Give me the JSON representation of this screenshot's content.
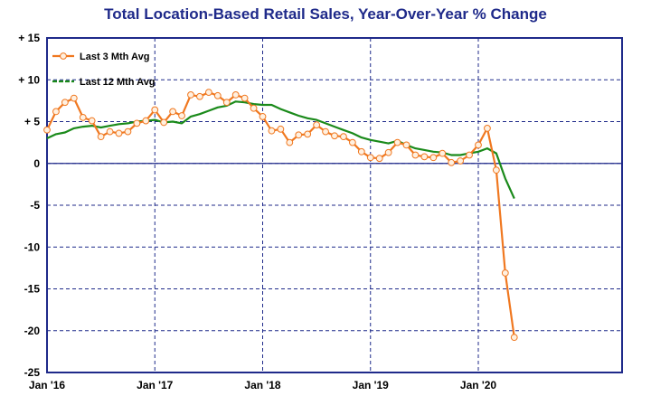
{
  "chart_data": {
    "type": "line",
    "title": "Total Location-Based Retail Sales, Year-Over-Year % Change",
    "xlabel": "",
    "ylabel": "",
    "ylim": [
      -25,
      15
    ],
    "yticks": [
      {
        "value": 15,
        "label": "+ 15"
      },
      {
        "value": 10,
        "label": "+ 10"
      },
      {
        "value": 5,
        "label": "+ 5"
      },
      {
        "value": 0,
        "label": "0"
      },
      {
        "value": -5,
        "label": "-5"
      },
      {
        "value": -10,
        "label": "-10"
      },
      {
        "value": -15,
        "label": "-15"
      },
      {
        "value": -20,
        "label": "-20"
      },
      {
        "value": -25,
        "label": "-25"
      }
    ],
    "xticks": [
      {
        "value": "2016-01",
        "label": "Jan '16"
      },
      {
        "value": "2017-01",
        "label": "Jan '17"
      },
      {
        "value": "2018-01",
        "label": "Jan '18"
      },
      {
        "value": "2019-01",
        "label": "Jan '19"
      },
      {
        "value": "2020-01",
        "label": "Jan '20"
      }
    ],
    "xlim": [
      "2016-01",
      "2021-05"
    ],
    "grid": true,
    "legend_position": "top-left",
    "series": [
      {
        "name": "Last 3 Mth Avg",
        "color": "#f07820",
        "marker": "circle",
        "x": [
          "2016-01",
          "2016-02",
          "2016-03",
          "2016-04",
          "2016-05",
          "2016-06",
          "2016-07",
          "2016-08",
          "2016-09",
          "2016-10",
          "2016-11",
          "2016-12",
          "2017-01",
          "2017-02",
          "2017-03",
          "2017-04",
          "2017-05",
          "2017-06",
          "2017-07",
          "2017-08",
          "2017-09",
          "2017-10",
          "2017-11",
          "2017-12",
          "2018-01",
          "2018-02",
          "2018-03",
          "2018-04",
          "2018-05",
          "2018-06",
          "2018-07",
          "2018-08",
          "2018-09",
          "2018-10",
          "2018-11",
          "2018-12",
          "2019-01",
          "2019-02",
          "2019-03",
          "2019-04",
          "2019-05",
          "2019-06",
          "2019-07",
          "2019-08",
          "2019-09",
          "2019-10",
          "2019-11",
          "2019-12",
          "2020-01",
          "2020-02",
          "2020-03",
          "2020-04",
          "2020-05"
        ],
        "values": [
          4.0,
          6.2,
          7.3,
          7.8,
          5.5,
          5.1,
          3.2,
          3.8,
          3.6,
          3.8,
          4.8,
          5.1,
          6.4,
          4.9,
          6.2,
          5.7,
          8.2,
          8.0,
          8.5,
          8.1,
          7.3,
          8.2,
          7.8,
          6.6,
          5.6,
          3.9,
          4.1,
          2.5,
          3.4,
          3.5,
          4.6,
          3.8,
          3.3,
          3.2,
          2.5,
          1.4,
          0.7,
          0.6,
          1.3,
          2.5,
          2.2,
          1.0,
          0.8,
          0.7,
          1.2,
          0.1,
          0.3,
          1.0,
          2.2,
          4.2,
          -0.8,
          -13.1,
          -20.8
        ]
      },
      {
        "name": "Last 12 Mth Avg",
        "color": "#1a8a1a",
        "marker": "none",
        "x": [
          "2016-01",
          "2016-02",
          "2016-03",
          "2016-04",
          "2016-05",
          "2016-06",
          "2016-07",
          "2016-08",
          "2016-09",
          "2016-10",
          "2016-11",
          "2016-12",
          "2017-01",
          "2017-02",
          "2017-03",
          "2017-04",
          "2017-05",
          "2017-06",
          "2017-07",
          "2017-08",
          "2017-09",
          "2017-10",
          "2017-11",
          "2017-12",
          "2018-01",
          "2018-02",
          "2018-03",
          "2018-04",
          "2018-05",
          "2018-06",
          "2018-07",
          "2018-08",
          "2018-09",
          "2018-10",
          "2018-11",
          "2018-12",
          "2019-01",
          "2019-02",
          "2019-03",
          "2019-04",
          "2019-05",
          "2019-06",
          "2019-07",
          "2019-08",
          "2019-09",
          "2019-10",
          "2019-11",
          "2019-12",
          "2020-01",
          "2020-02",
          "2020-03",
          "2020-04",
          "2020-05"
        ],
        "values": [
          3.0,
          3.5,
          3.7,
          4.2,
          4.4,
          4.5,
          4.3,
          4.5,
          4.7,
          4.8,
          5.0,
          5.1,
          5.2,
          4.9,
          5.0,
          4.8,
          5.6,
          5.9,
          6.3,
          6.7,
          6.9,
          7.4,
          7.3,
          7.1,
          7.0,
          7.0,
          6.5,
          6.1,
          5.7,
          5.4,
          5.2,
          4.8,
          4.4,
          4.0,
          3.6,
          3.1,
          2.8,
          2.6,
          2.4,
          2.7,
          2.2,
          1.8,
          1.6,
          1.4,
          1.3,
          1.0,
          1.0,
          1.2,
          1.4,
          1.8,
          1.2,
          -1.8,
          -4.2
        ]
      }
    ]
  }
}
